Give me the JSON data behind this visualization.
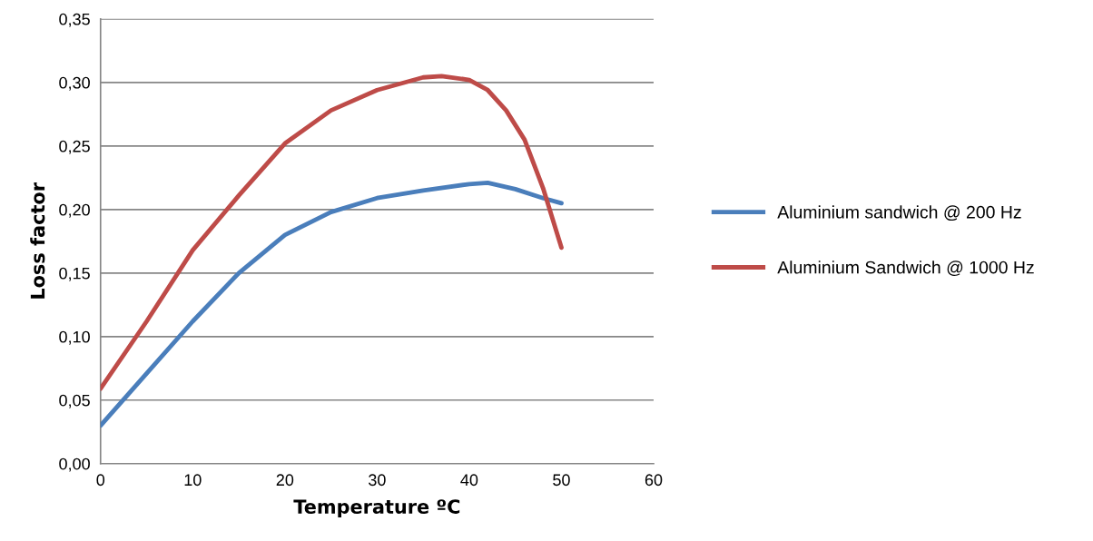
{
  "chart_data": {
    "type": "line",
    "xlabel": "Temperature ºC",
    "ylabel": "Loss factor",
    "xlim": [
      0,
      60
    ],
    "xticks": [
      0,
      10,
      20,
      30,
      40,
      50,
      60
    ],
    "ylim": [
      0,
      0.35
    ],
    "yticks": [
      {
        "value": 0,
        "label": "0,00"
      },
      {
        "value": 0.05,
        "label": "0,05"
      },
      {
        "value": 0.1,
        "label": "0,10"
      },
      {
        "value": 0.15,
        "label": "0,15"
      },
      {
        "value": 0.2,
        "label": "0,20"
      },
      {
        "value": 0.25,
        "label": "0,25"
      },
      {
        "value": 0.3,
        "label": "0,30"
      },
      {
        "value": 0.35,
        "label": "0,35"
      }
    ],
    "grid": "y",
    "legend": "right",
    "marker": "none",
    "line_style": "solid",
    "series": [
      {
        "name": "Aluminium sandwich @ 200 Hz",
        "color": "#4a7ebb",
        "x": [
          0,
          5,
          10,
          15,
          20,
          25,
          30,
          35,
          40,
          42,
          45,
          48,
          50
        ],
        "values": [
          0.03,
          0.071,
          0.112,
          0.15,
          0.18,
          0.198,
          0.209,
          0.215,
          0.22,
          0.221,
          0.216,
          0.209,
          0.205
        ]
      },
      {
        "name": "Aluminium Sandwich @ 1000 Hz",
        "color": "#be4b48",
        "x": [
          0,
          5,
          10,
          15,
          20,
          25,
          30,
          35,
          37,
          40,
          42,
          44,
          46,
          48,
          50
        ],
        "values": [
          0.059,
          0.112,
          0.168,
          0.211,
          0.252,
          0.278,
          0.294,
          0.304,
          0.305,
          0.302,
          0.294,
          0.278,
          0.255,
          0.217,
          0.17
        ]
      }
    ]
  }
}
